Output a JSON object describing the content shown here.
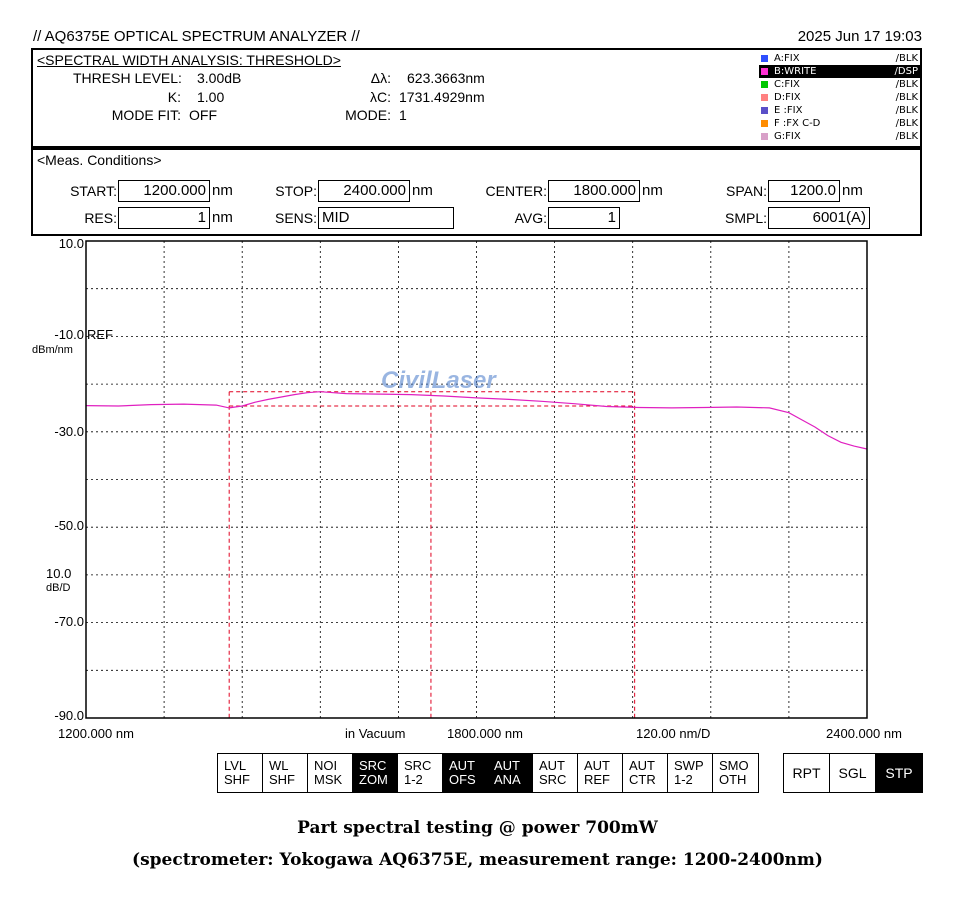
{
  "header": {
    "title": "// AQ6375E OPTICAL SPECTRUM ANALYZER //",
    "datetime": "2025 Jun 17 19:03"
  },
  "analysis": {
    "heading": "<SPECTRAL WIDTH ANALYSIS: THRESHOLD>",
    "thresh_label": "THRESH LEVEL:",
    "thresh_value": "3.00dB",
    "k_label": "K:",
    "k_value": "1.00",
    "modefit_label": "MODE FIT:",
    "modefit_value": "OFF",
    "dl_label": "Δλ:",
    "dl_value": "623.3663nm",
    "lc_label": "λC:",
    "lc_value": "1731.4929nm",
    "mode_label": "MODE:",
    "mode_value": "1"
  },
  "traces": [
    {
      "name": "A:FIX",
      "mode": "/BLK",
      "color": "#2f4fff",
      "active": false
    },
    {
      "name": "B:WRITE",
      "mode": "/DSP",
      "color": "#ff2fd5",
      "active": true
    },
    {
      "name": "C:FIX",
      "mode": "/BLK",
      "color": "#00c800",
      "active": false
    },
    {
      "name": "D:FIX",
      "mode": "/BLK",
      "color": "#ff8080",
      "active": false
    },
    {
      "name": "E :FIX",
      "mode": "/BLK",
      "color": "#5a4fc8",
      "active": false
    },
    {
      "name": "F :FX C-D",
      "mode": "/BLK",
      "color": "#ff8c00",
      "active": false
    },
    {
      "name": "G:FIX",
      "mode": "/BLK",
      "color": "#d8a0c8",
      "active": false
    }
  ],
  "conditions": {
    "heading": "<Meas. Conditions>",
    "start_label": "START:",
    "start_value": "1200.000",
    "start_unit": "nm",
    "stop_label": "STOP:",
    "stop_value": "2400.000",
    "stop_unit": "nm",
    "center_label": "CENTER:",
    "center_value": "1800.000",
    "center_unit": "nm",
    "span_label": "SPAN:",
    "span_value": "1200.0",
    "span_unit": "nm",
    "res_label": "RES:",
    "res_value": "1",
    "res_unit": "nm",
    "sens_label": "SENS:",
    "sens_value": "MID",
    "avg_label": "AVG:",
    "avg_value": "1",
    "smpl_label": "SMPL:",
    "smpl_value": "6001(A)"
  },
  "plot": {
    "y_labels": [
      "10.0",
      "-10.0",
      "-30.0",
      "-50.0",
      "-70.0",
      "-90.0"
    ],
    "ref_label": "REF",
    "y_unit": "dBm/nm",
    "scale_value": "10.0",
    "scale_unit": "dB/D",
    "x_start": "1200.000 nm",
    "x_medium": "in Vacuum",
    "x_center": "1800.000 nm",
    "x_per_div": "120.00 nm/D",
    "x_stop": "2400.000 nm",
    "watermark": "CivilLaser",
    "trace_color": "#e020c0",
    "marker_color": "#e00020"
  },
  "chart_data": {
    "type": "line",
    "xlabel": "",
    "ylabel": "",
    "xlim": [
      1200,
      2400
    ],
    "ylim": [
      -90,
      10
    ],
    "grid": true,
    "series": [
      {
        "x": [
          1200,
          1250,
          1300,
          1350,
          1400,
          1420,
          1440,
          1460,
          1480,
          1500,
          1520,
          1540,
          1560,
          1580,
          1600,
          1650,
          1700,
          1750,
          1800,
          1850,
          1900,
          1950,
          2000,
          2050,
          2100,
          2150,
          2200,
          2250,
          2280,
          2300,
          2320,
          2340,
          2360,
          2380,
          2400
        ],
        "y": [
          -24.5,
          -24.6,
          -24.3,
          -24.2,
          -24.4,
          -25.0,
          -24.6,
          -23.8,
          -23.2,
          -22.7,
          -22.2,
          -21.8,
          -21.6,
          -21.8,
          -22.0,
          -22.1,
          -22.2,
          -22.5,
          -22.9,
          -23.2,
          -23.6,
          -24.1,
          -24.7,
          -24.9,
          -25.0,
          -24.9,
          -24.8,
          -25.0,
          -26.0,
          -27.5,
          -29.0,
          -30.8,
          -32.2,
          -33.0,
          -33.6
        ]
      }
    ],
    "markers_x": [
      1420,
      1730,
      2043
    ],
    "threshold_y": [
      -21.6,
      -24.6
    ],
    "ref_level": -10.0
  },
  "softkeys": {
    "group1": [
      {
        "l1": "LVL",
        "l2": "SHF",
        "on": false
      },
      {
        "l1": "WL",
        "l2": "SHF",
        "on": false
      },
      {
        "l1": "NOI",
        "l2": "MSK",
        "on": false
      },
      {
        "l1": "SRC",
        "l2": "ZOM",
        "on": true
      },
      {
        "l1": "SRC",
        "l2": "1-2",
        "on": false
      },
      {
        "l1": "AUT",
        "l2": "OFS",
        "on": true
      },
      {
        "l1": "AUT",
        "l2": "ANA",
        "on": true
      },
      {
        "l1": "AUT",
        "l2": "SRC",
        "on": false
      },
      {
        "l1": "AUT",
        "l2": "REF",
        "on": false
      },
      {
        "l1": "AUT",
        "l2": "CTR",
        "on": false
      },
      {
        "l1": "SWP",
        "l2": "1-2",
        "on": false
      },
      {
        "l1": "SMO",
        "l2": "OTH",
        "on": false
      }
    ],
    "group2": [
      {
        "label": "RPT",
        "on": false
      },
      {
        "label": "SGL",
        "on": false
      },
      {
        "label": "STP",
        "on": true
      }
    ]
  },
  "captions": {
    "line1": "Part spectral testing @ power 700mW",
    "line2": "(spectrometer: Yokogawa AQ6375E, measurement range: 1200-2400nm)"
  }
}
